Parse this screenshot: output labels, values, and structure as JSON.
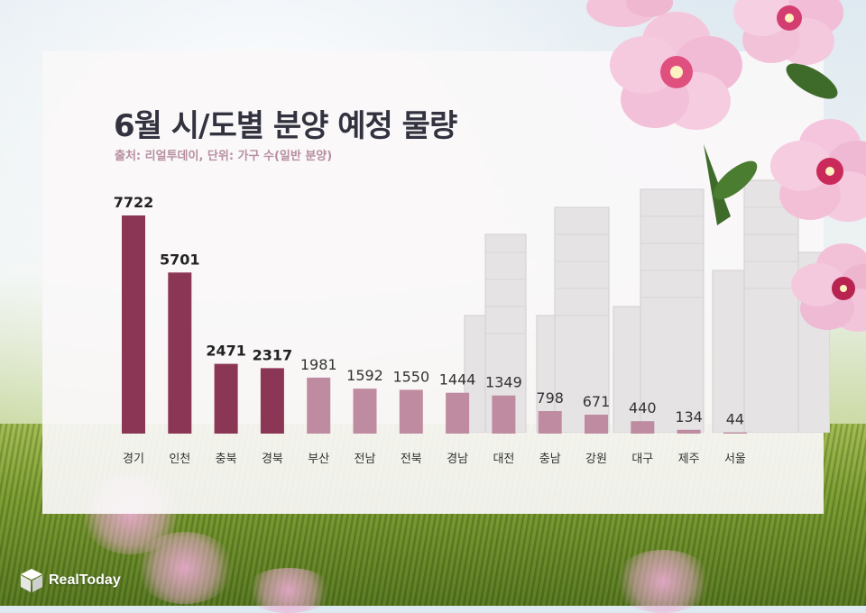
{
  "title": "6월 시/도별 분양 예정 물량",
  "subtitle": "출처: 리얼투데이, 단위: 가구 수(일반 분양)",
  "logo": {
    "text": "RealToday",
    "icon": "cube-logo-icon"
  },
  "colors": {
    "primary_bar": "#8c3655",
    "secondary_bar": "#bf8ba0",
    "label_dark": "#222222",
    "label_light": "#333333"
  },
  "chart_data": {
    "type": "bar",
    "categories": [
      "경기",
      "인천",
      "충북",
      "경북",
      "부산",
      "전남",
      "전북",
      "경남",
      "대전",
      "충남",
      "강원",
      "대구",
      "제주",
      "서울"
    ],
    "values": [
      7722,
      5701,
      2471,
      2317,
      1981,
      1592,
      1550,
      1444,
      1349,
      798,
      671,
      440,
      134,
      44
    ],
    "data_labels": [
      "7722",
      "5701",
      "2471",
      "2317",
      "1981",
      "1592",
      "1550",
      "1444",
      "1349",
      "798",
      "671",
      "440",
      "134",
      "44"
    ],
    "highlight_top_n": 4,
    "title": "6월 시/도별 분양 예정 물량",
    "xlabel": "",
    "ylabel": "",
    "ylim": [
      0,
      7722
    ],
    "grid": false,
    "legend": "none"
  }
}
